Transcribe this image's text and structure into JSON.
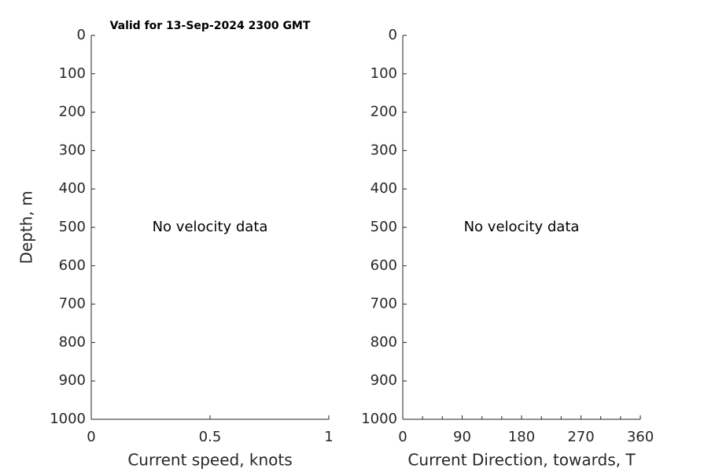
{
  "chart_data": [
    {
      "type": "line",
      "title": "Valid for 13-Sep-2024 2300 GMT",
      "x_label": "Current speed, knots",
      "y_label": "Depth, m",
      "annotation": "No velocity data",
      "series": [],
      "xlim": [
        0,
        1
      ],
      "xticks": [
        0,
        0.5,
        1
      ],
      "ylim": [
        0,
        1000
      ],
      "yticks": [
        0,
        100,
        200,
        300,
        400,
        500,
        600,
        700,
        800,
        900,
        1000
      ],
      "y_reversed": true
    },
    {
      "type": "line",
      "x_label": "Current Direction, towards, T",
      "annotation": "No velocity data",
      "series": [],
      "xlim": [
        0,
        360
      ],
      "xticks": [
        0,
        90,
        180,
        270,
        360
      ],
      "xminorticks": [
        30,
        60,
        120,
        150,
        210,
        240,
        300,
        330
      ],
      "ylim": [
        0,
        1000
      ],
      "yticks": [
        0,
        100,
        200,
        300,
        400,
        500,
        600,
        700,
        800,
        900,
        1000
      ],
      "y_reversed": true
    }
  ]
}
